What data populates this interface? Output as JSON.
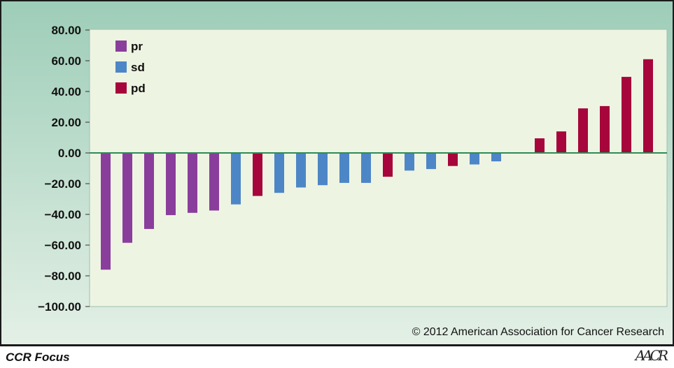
{
  "footer": {
    "label": "CCR Focus",
    "copyright": "© 2012 American Association for Cancer Research"
  },
  "logo": {
    "text": "AACR"
  },
  "colors": {
    "pr": "#8a3e9c",
    "sd": "#4d86c6",
    "pd": "#a6063b",
    "zero_line": "#2e8b57",
    "plot_bg": "#eef4e2",
    "outer_bg_top": "#9dcdb8",
    "outer_bg_bottom": "#e4f0e6"
  },
  "chart_data": {
    "type": "bar",
    "title": "",
    "xlabel": "",
    "ylabel": "",
    "ylim": [
      -100,
      80
    ],
    "yticks": [
      80,
      60,
      40,
      20,
      0,
      -20,
      -40,
      -60,
      -80,
      -100
    ],
    "ytick_labels": [
      "80.00",
      "60.00",
      "40.00",
      "20.00",
      "0.00",
      "−20.00",
      "−40.00",
      "−60.00",
      "−80.00",
      "−100.00"
    ],
    "legend": {
      "placement": "top-left",
      "entries": [
        {
          "name": "pr",
          "color": "#8a3e9c"
        },
        {
          "name": "sd",
          "color": "#4d86c6"
        },
        {
          "name": "pd",
          "color": "#a6063b"
        }
      ]
    },
    "grid": false,
    "bars": [
      {
        "value": -76,
        "group": "pr"
      },
      {
        "value": -58.5,
        "group": "pr"
      },
      {
        "value": -49.5,
        "group": "pr"
      },
      {
        "value": -40.5,
        "group": "pr"
      },
      {
        "value": -39,
        "group": "pr"
      },
      {
        "value": -37.5,
        "group": "pr"
      },
      {
        "value": -33.5,
        "group": "sd"
      },
      {
        "value": -28,
        "group": "pd"
      },
      {
        "value": -26,
        "group": "sd"
      },
      {
        "value": -22.5,
        "group": "sd"
      },
      {
        "value": -21,
        "group": "sd"
      },
      {
        "value": -19.5,
        "group": "sd"
      },
      {
        "value": -19.5,
        "group": "sd"
      },
      {
        "value": -15.5,
        "group": "pd"
      },
      {
        "value": -11.5,
        "group": "sd"
      },
      {
        "value": -10.5,
        "group": "sd"
      },
      {
        "value": -8.5,
        "group": "pd"
      },
      {
        "value": -7.5,
        "group": "sd"
      },
      {
        "value": -5.5,
        "group": "sd"
      },
      {
        "value": 0,
        "group": ""
      },
      {
        "value": 9.5,
        "group": "pd"
      },
      {
        "value": 14,
        "group": "pd"
      },
      {
        "value": 29,
        "group": "pd"
      },
      {
        "value": 30.5,
        "group": "pd"
      },
      {
        "value": 49.5,
        "group": "pd"
      },
      {
        "value": 61,
        "group": "pd"
      }
    ]
  }
}
